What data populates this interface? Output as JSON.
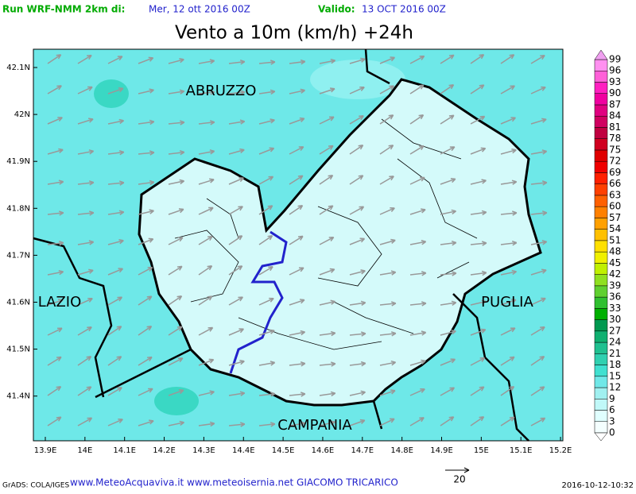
{
  "header": {
    "run_label": "Run WRF-NMM 2km di:",
    "run_date": "Mer, 12 ott 2016 00Z",
    "valid_label": "Valido:",
    "valid_date": "13 OCT 2016 00Z",
    "title": "Vento a 10m (km/h) +24h"
  },
  "map": {
    "lat_labels": [
      "42.1N",
      "42N",
      "41.9N",
      "41.8N",
      "41.7N",
      "41.6N",
      "41.5N",
      "41.4N"
    ],
    "lon_labels": [
      "13.9E",
      "14E",
      "14.1E",
      "14.2E",
      "14.3E",
      "14.4E",
      "14.5E",
      "14.6E",
      "14.7E",
      "14.8E",
      "14.9E",
      "15E",
      "15.1E",
      "15.2E"
    ],
    "regions": [
      "ABRUZZO",
      "LAZIO",
      "PUGLIA",
      "CAMPANIA"
    ]
  },
  "legend": {
    "levels": [
      0,
      3,
      6,
      9,
      12,
      15,
      18,
      21,
      24,
      27,
      30,
      33,
      36,
      39,
      42,
      45,
      48,
      51,
      54,
      57,
      60,
      63,
      66,
      69,
      72,
      75,
      78,
      81,
      84,
      87,
      90,
      93,
      96,
      99
    ],
    "colors": [
      "#f4ffff",
      "#e0ffff",
      "#c0f8f8",
      "#a0f0f0",
      "#70e8e8",
      "#40e0d0",
      "#30d0b0",
      "#20c090",
      "#10b070",
      "#009950",
      "#00b000",
      "#30c030",
      "#60d030",
      "#90e020",
      "#c0f000",
      "#f0f000",
      "#ffe000",
      "#ffc000",
      "#ffa000",
      "#ff8000",
      "#ff6000",
      "#ff4000",
      "#ff2000",
      "#f00000",
      "#e00000",
      "#d00020",
      "#c00040",
      "#d00060",
      "#e00080",
      "#f000a0",
      "#ff20c0",
      "#ff60d8",
      "#ff90f0"
    ]
  },
  "footer": {
    "credit": "GrADS: COLA/IGES",
    "sites": "www.MeteoAcquaviva.it www.meteoisernia.net GIACOMO TRICARICO",
    "ref_vector": "20",
    "timestamp": "2016-10-12-10:32"
  }
}
